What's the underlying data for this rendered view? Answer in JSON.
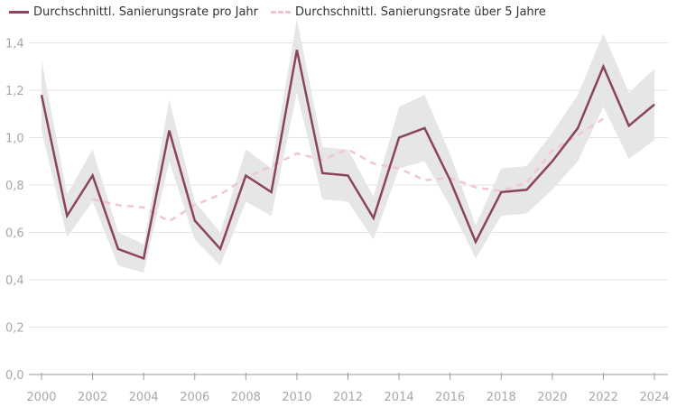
{
  "chart_data": {
    "type": "line",
    "title": "",
    "xlabel": "",
    "ylabel": "",
    "ylim": [
      0,
      1.45
    ],
    "xlim": [
      2000,
      2024
    ],
    "grid": true,
    "legend_placement": "top-left",
    "y_ticks": [
      "0,0",
      "0,2",
      "0,4",
      "0,6",
      "0,8",
      "1,0",
      "1,2",
      "1,4"
    ],
    "y_tick_values": [
      0,
      0.2,
      0.4,
      0.6,
      0.8,
      1.0,
      1.2,
      1.4
    ],
    "x_ticks": [
      "2000",
      "2002",
      "2004",
      "2006",
      "2008",
      "2010",
      "2012",
      "2014",
      "2016",
      "2018",
      "2020",
      "2022",
      "2024"
    ],
    "x": [
      2000,
      2001,
      2002,
      2003,
      2004,
      2005,
      2006,
      2007,
      2008,
      2009,
      2010,
      2011,
      2012,
      2013,
      2014,
      2015,
      2016,
      2017,
      2018,
      2019,
      2020,
      2021,
      2022,
      2023,
      2024
    ],
    "series": [
      {
        "name": "Durchschnittl. Sanierungsrate pro Jahr",
        "style": "solid",
        "color": "#8a4558",
        "values": [
          1.18,
          0.67,
          0.84,
          0.53,
          0.49,
          1.03,
          0.65,
          0.53,
          0.84,
          0.77,
          1.37,
          0.85,
          0.84,
          0.66,
          1.0,
          1.04,
          0.82,
          0.56,
          0.77,
          0.78,
          0.9,
          1.04,
          1.3,
          1.05,
          1.14
        ],
        "band": {
          "color": "#e6e6e6",
          "lower": [
            1.03,
            0.58,
            0.73,
            0.46,
            0.43,
            0.9,
            0.57,
            0.46,
            0.73,
            0.67,
            1.19,
            0.74,
            0.73,
            0.57,
            0.87,
            0.9,
            0.71,
            0.49,
            0.67,
            0.68,
            0.78,
            0.9,
            1.13,
            0.91,
            0.99
          ],
          "upper": [
            1.33,
            0.76,
            0.95,
            0.6,
            0.55,
            1.16,
            0.73,
            0.6,
            0.95,
            0.87,
            1.5,
            0.96,
            0.95,
            0.75,
            1.13,
            1.18,
            0.93,
            0.63,
            0.87,
            0.88,
            1.02,
            1.18,
            1.44,
            1.19,
            1.29
          ]
        }
      },
      {
        "name": "Durchschnittl. Sanierungsrate über 5 Jahre",
        "style": "dashed",
        "color": "#f2c6cf",
        "x": [
          2002,
          2003,
          2004,
          2005,
          2006,
          2007,
          2008,
          2009,
          2010,
          2011,
          2012,
          2013,
          2014,
          2015,
          2016,
          2017,
          2018,
          2019,
          2020,
          2021,
          2022
        ],
        "values": [
          0.74,
          0.715,
          0.705,
          0.647,
          0.715,
          0.76,
          0.83,
          0.88,
          0.933,
          0.907,
          0.95,
          0.89,
          0.87,
          0.82,
          0.83,
          0.79,
          0.775,
          0.81,
          0.945,
          1.01,
          1.08
        ]
      }
    ]
  }
}
